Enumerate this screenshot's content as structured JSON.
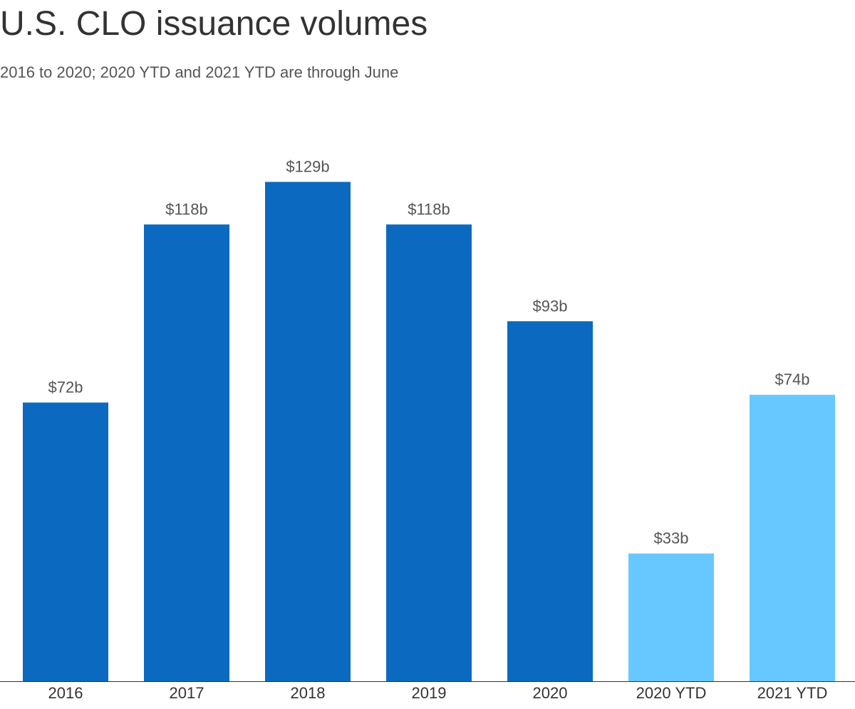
{
  "chart_data": {
    "type": "bar",
    "title": "U.S. CLO issuance volumes",
    "subtitle": "2016 to 2020; 2020 YTD and 2021 YTD are through June",
    "xlabel": "",
    "ylabel": "",
    "categories": [
      "2016",
      "2017",
      "2018",
      "2019",
      "2020",
      "2020 YTD",
      "2021 YTD"
    ],
    "values": [
      72,
      118,
      129,
      118,
      93,
      33,
      74
    ],
    "value_labels": [
      "$72b",
      "$118b",
      "$129b",
      "$118b",
      "$93b",
      "$33b",
      "$74b"
    ],
    "ylim": [
      0,
      137
    ],
    "grid": false,
    "legend": "none",
    "colors": {
      "full_year": "#0b6ac0",
      "ytd": "#66c8ff",
      "baseline": "#333333"
    },
    "bar_color_keys": [
      "full_year",
      "full_year",
      "full_year",
      "full_year",
      "full_year",
      "ytd",
      "ytd"
    ]
  }
}
